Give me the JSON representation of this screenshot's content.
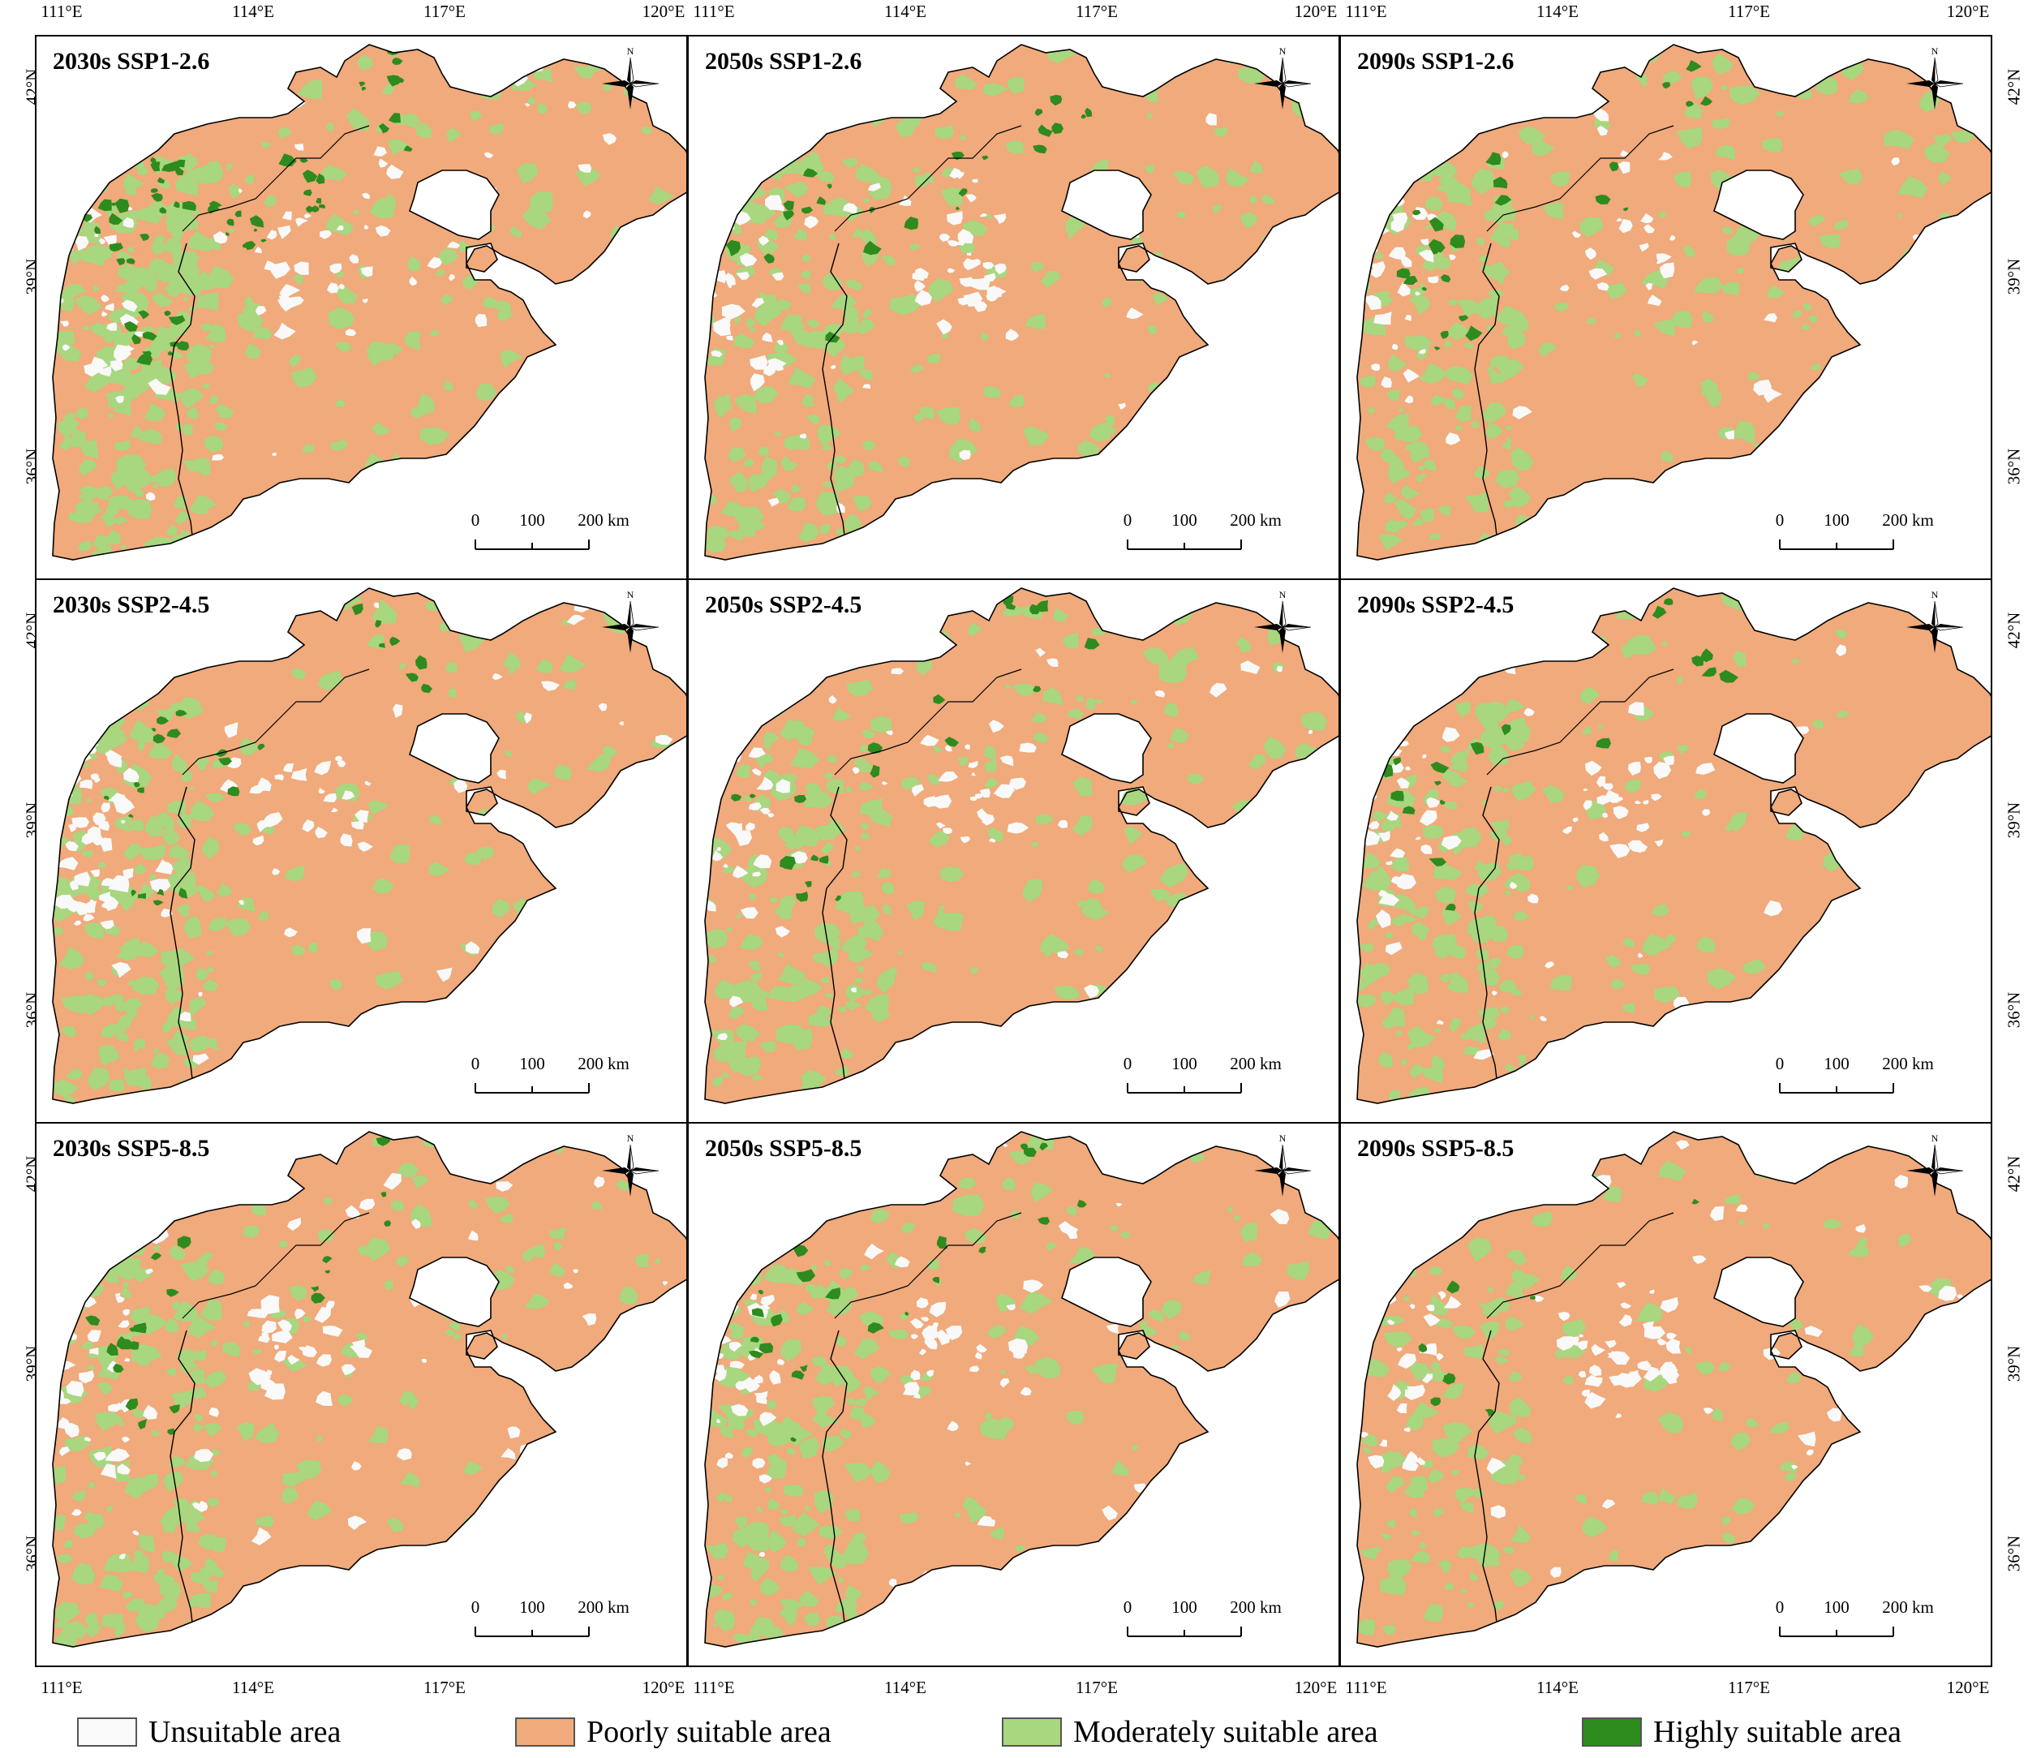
{
  "colors": {
    "unsuitable": "#f9f9f9",
    "poor": "#f0aa7b",
    "moderate": "#a8d77f",
    "high": "#2e8b1e",
    "boundary": "#000000"
  },
  "axes": {
    "lon_labels": [
      "111°E",
      "114°E",
      "117°E",
      "120°E"
    ],
    "lat_labels": [
      "42°N",
      "39°N",
      "36°N"
    ]
  },
  "panels": [
    {
      "title": "2030s SSP1-2.6",
      "suitability": {
        "high": 0.14,
        "moderate": 0.36,
        "unsuitable": 0.14
      }
    },
    {
      "title": "2050s SSP1-2.6",
      "suitability": {
        "high": 0.05,
        "moderate": 0.27,
        "unsuitable": 0.12
      }
    },
    {
      "title": "2090s SSP1-2.6",
      "suitability": {
        "high": 0.05,
        "moderate": 0.27,
        "unsuitable": 0.1
      }
    },
    {
      "title": "2030s SSP2-4.5",
      "suitability": {
        "high": 0.06,
        "moderate": 0.26,
        "unsuitable": 0.16
      }
    },
    {
      "title": "2050s SSP2-4.5",
      "suitability": {
        "high": 0.05,
        "moderate": 0.27,
        "unsuitable": 0.11
      }
    },
    {
      "title": "2090s SSP2-4.5",
      "suitability": {
        "high": 0.04,
        "moderate": 0.24,
        "unsuitable": 0.12
      }
    },
    {
      "title": "2030s SSP5-8.5",
      "suitability": {
        "high": 0.05,
        "moderate": 0.25,
        "unsuitable": 0.15
      }
    },
    {
      "title": "2050s SSP5-8.5",
      "suitability": {
        "high": 0.05,
        "moderate": 0.24,
        "unsuitable": 0.13
      }
    },
    {
      "title": "2090s SSP5-8.5",
      "suitability": {
        "high": 0.02,
        "moderate": 0.18,
        "unsuitable": 0.15
      }
    }
  ],
  "scale_bar": {
    "ticks": [
      "0",
      "100",
      "200 km"
    ]
  },
  "compass_label": "N",
  "legend": [
    {
      "key": "unsuitable",
      "label": "Unsuitable area"
    },
    {
      "key": "poor",
      "label": "Poorly suitable area"
    },
    {
      "key": "moderate",
      "label": "Moderately suitable area"
    },
    {
      "key": "high",
      "label": "Highly suitable area"
    }
  ]
}
